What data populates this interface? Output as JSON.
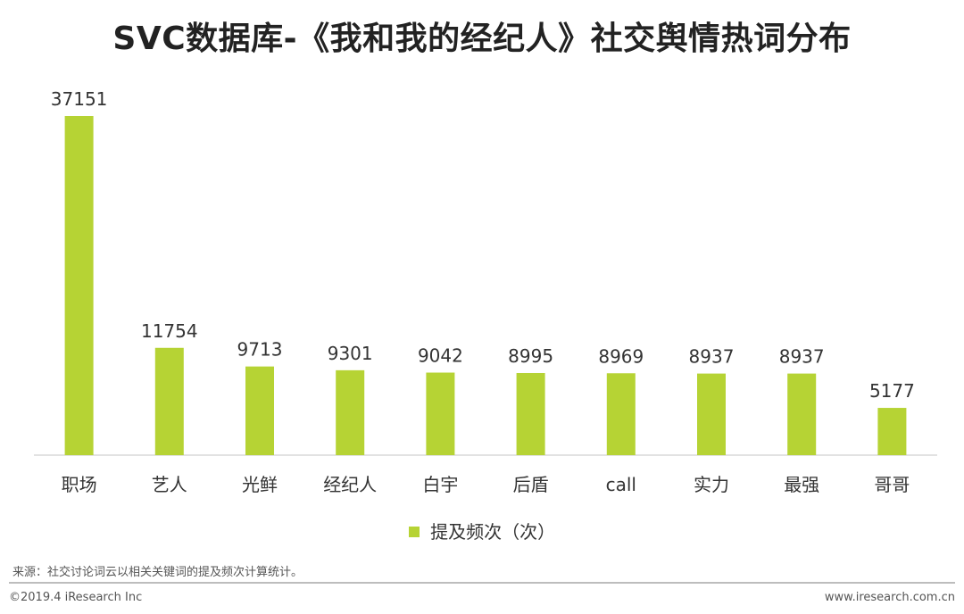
{
  "colors": {
    "bar": "#b6d334",
    "axis": "#d9d9d9",
    "text": "#333333"
  },
  "chart_data": {
    "type": "bar",
    "title": "SVC数据库-《我和我的经纪人》社交舆情热词分布",
    "categories": [
      "职场",
      "艺人",
      "光鲜",
      "经纪人",
      "白宇",
      "后盾",
      "call",
      "实力",
      "最强",
      "哥哥"
    ],
    "series": [
      {
        "name": "提及频次（次）",
        "values": [
          37151,
          11754,
          9713,
          9301,
          9042,
          8995,
          8969,
          8937,
          8937,
          5177
        ]
      }
    ],
    "ylim": [
      0,
      37151
    ],
    "xlabel": "",
    "ylabel": "",
    "legend": "bottom-center",
    "grid": false
  },
  "source_note": "来源：社交讨论词云以相关关键词的提及频次计算统计。",
  "copyright": "©2019.4 iResearch Inc",
  "website": "www.iresearch.com.cn"
}
